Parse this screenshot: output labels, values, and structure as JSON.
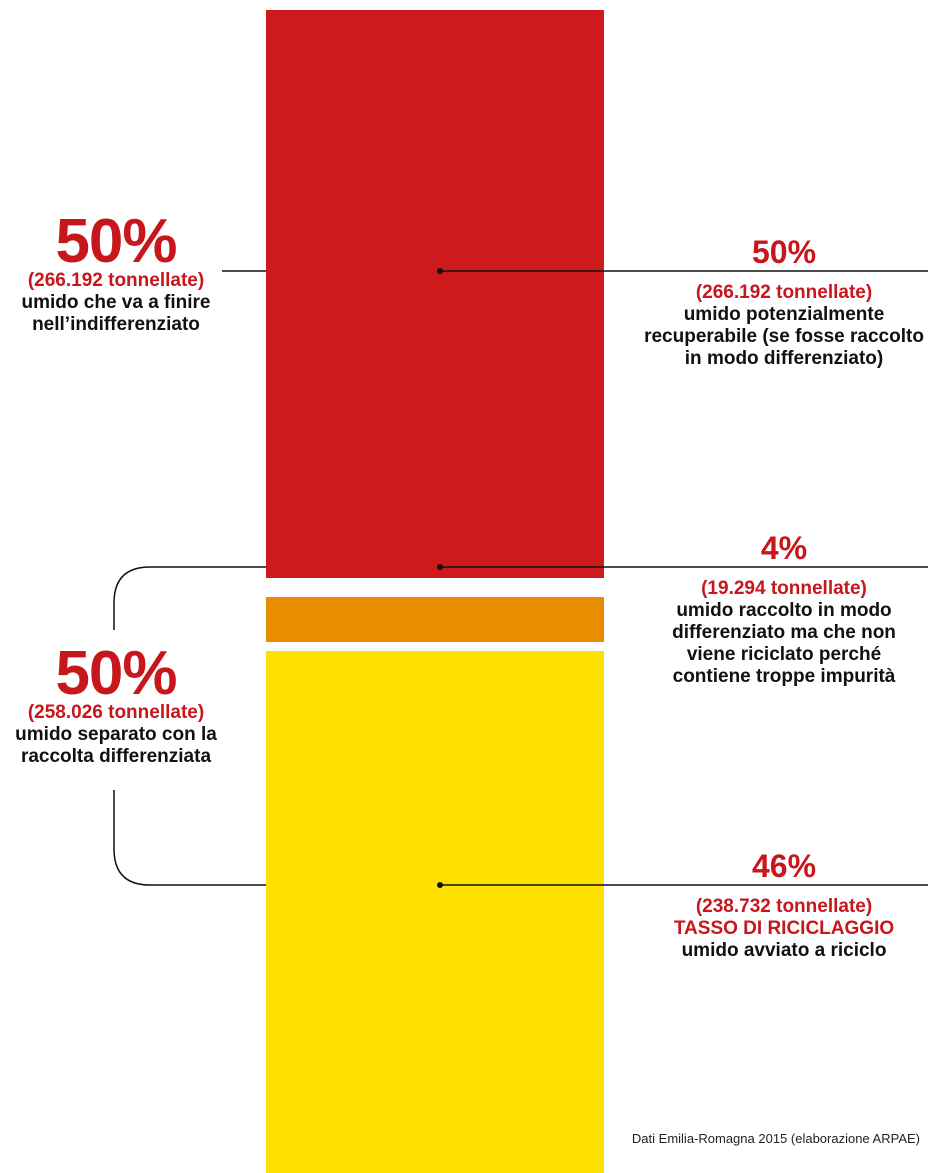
{
  "chart_data": {
    "type": "bar",
    "orientation": "stacked-vertical",
    "segments": [
      {
        "name": "umido potenzialmente recuperabile",
        "percent": 50,
        "tonnes": 266192,
        "color": "#cf1a1d"
      },
      {
        "name": "umido raccolto con troppe impurità",
        "percent": 4,
        "tonnes": 19294,
        "color": "#ea8c00"
      },
      {
        "name": "umido avviato a riciclo",
        "percent": 46,
        "tonnes": 238732,
        "color": "#fee100"
      }
    ]
  },
  "left": {
    "top": {
      "pct": "50%",
      "tonn": "(266.192 tonnellate)",
      "desc": [
        "umido che va a finire",
        "nell’indifferenziato"
      ]
    },
    "bottom": {
      "pct": "50%",
      "tonn": "(258.026 tonnellate)",
      "desc": [
        "umido separato con la",
        "raccolta differenziata"
      ]
    }
  },
  "right": {
    "red": {
      "pct": "50%",
      "tonn": "(266.192 tonnellate)",
      "desc": [
        "umido potenzialmente",
        "recuperabile (se fosse raccolto",
        "in modo differenziato)"
      ]
    },
    "orange": {
      "pct": "4%",
      "tonn": "(19.294 tonnellate)",
      "desc": [
        "umido raccolto in modo",
        "differenziato ma che non",
        "viene riciclato perché",
        "contiene troppe impurità"
      ]
    },
    "yellow": {
      "pct": "46%",
      "tonn": "(238.732 tonnellate)",
      "highlight": "TASSO DI RICICLAGGIO",
      "desc": [
        "umido avviato a riciclo"
      ]
    }
  },
  "source": "Dati Emilia-Romagna 2015 (elaborazione ARPAE)"
}
